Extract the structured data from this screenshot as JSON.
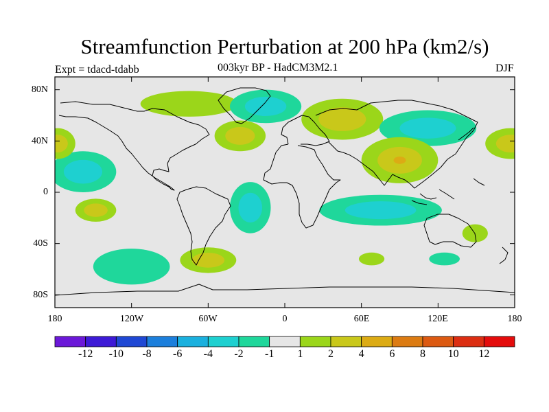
{
  "title": "Streamfunction Perturbation at 200 hPa (km2/s)",
  "subtitle": "003kyr BP - HadCM3M2.1",
  "experiment": "Expt = tdacd-tdabb",
  "season": "DJF",
  "colors": {
    "background": "#e6e6e6",
    "coast": "#000000",
    "palette": [
      "#6b18d8",
      "#3d1ad6",
      "#1f48d4",
      "#1c7fdc",
      "#1ab0de",
      "#1ed0d0",
      "#1fd79b",
      "#e6e6e6",
      "#9bd61a",
      "#c9c81a",
      "#dcab14",
      "#dc7b12",
      "#dc5a12",
      "#dc2e12",
      "#e40c0c"
    ]
  },
  "lat_labels": [
    "80N",
    "40N",
    "0",
    "40S",
    "80S"
  ],
  "lon_labels": [
    "180",
    "120W",
    "60W",
    "0",
    "60E",
    "120E",
    "180"
  ],
  "colorbar_labels": [
    "-12",
    "-10",
    "-8",
    "-6",
    "-4",
    "-2",
    "-1",
    "1",
    "2",
    "4",
    "6",
    "8",
    "10",
    "12"
  ],
  "chart_data": {
    "type": "heatmap",
    "title": "Streamfunction Perturbation at 200 hPa (km2/s)",
    "projection": "cylindrical-equidistant",
    "xlim": [
      -180,
      180
    ],
    "ylim": [
      -90,
      90
    ],
    "contour_levels": [
      -12,
      -10,
      -8,
      -6,
      -4,
      -2,
      -1,
      1,
      2,
      4,
      6,
      8,
      10,
      12
    ],
    "features": [
      {
        "name": "north-america-arctic-high",
        "lon": -75,
        "lat": 69,
        "rx": 38,
        "ry": 10,
        "levels": [
          1
        ]
      },
      {
        "name": "greenland-low",
        "lon": -15,
        "lat": 67,
        "rx": 28,
        "ry": 13,
        "levels": [
          -1,
          -2
        ]
      },
      {
        "name": "north-atlantic-high",
        "lon": -35,
        "lat": 44,
        "rx": 20,
        "ry": 12,
        "levels": [
          1,
          2
        ]
      },
      {
        "name": "europe-russia-high",
        "lon": 45,
        "lat": 57,
        "rx": 32,
        "ry": 16,
        "levels": [
          1,
          2
        ]
      },
      {
        "name": "north-asia-low",
        "lon": 112,
        "lat": 50,
        "rx": 38,
        "ry": 14,
        "levels": [
          -1,
          -2
        ]
      },
      {
        "name": "tibet-india-high",
        "lon": 90,
        "lat": 25,
        "rx": 30,
        "ry": 18,
        "levels": [
          1,
          2,
          4
        ]
      },
      {
        "name": "east-pacific-low",
        "lon": -158,
        "lat": 16,
        "rx": 26,
        "ry": 16,
        "levels": [
          -1,
          -2
        ]
      },
      {
        "name": "north-pacific-high-east",
        "lon": 177,
        "lat": 38,
        "rx": 20,
        "ry": 12,
        "levels": [
          1,
          2
        ]
      },
      {
        "name": "north-pacific-high-west",
        "lon": -178,
        "lat": 38,
        "rx": 14,
        "ry": 12,
        "levels": [
          1,
          2
        ]
      },
      {
        "name": "tropical-south-pacific-high",
        "lon": -148,
        "lat": -14,
        "rx": 16,
        "ry": 9,
        "levels": [
          1,
          2
        ]
      },
      {
        "name": "south-atlantic-low",
        "lon": -27,
        "lat": -12,
        "rx": 16,
        "ry": 20,
        "levels": [
          -1,
          -2
        ]
      },
      {
        "name": "maritime-continent-low",
        "lon": 75,
        "lat": -14,
        "rx": 48,
        "ry": 12,
        "levels": [
          -1,
          -2
        ]
      },
      {
        "name": "south-america-high",
        "lon": -60,
        "lat": -53,
        "rx": 22,
        "ry": 10,
        "levels": [
          1,
          2
        ]
      },
      {
        "name": "southern-ocean-low",
        "lon": -120,
        "lat": -58,
        "rx": 30,
        "ry": 14,
        "levels": [
          -1
        ]
      },
      {
        "name": "indian-ocean-south-high",
        "lon": 68,
        "lat": -52,
        "rx": 10,
        "ry": 5,
        "levels": [
          1
        ]
      },
      {
        "name": "south-pacific-low",
        "lon": 125,
        "lat": -52,
        "rx": 12,
        "ry": 5,
        "levels": [
          -1
        ]
      },
      {
        "name": "australia-south-high",
        "lon": 149,
        "lat": -32,
        "rx": 10,
        "ry": 7,
        "levels": [
          1
        ]
      }
    ]
  }
}
